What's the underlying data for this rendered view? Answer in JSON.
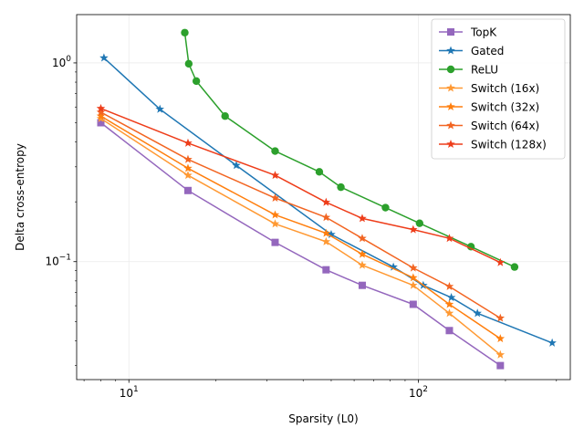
{
  "chart_data": {
    "type": "line",
    "title": "",
    "xlabel": "Sparsity (L0)",
    "ylabel": "Delta cross-entropy",
    "xscale": "log",
    "yscale": "log",
    "xlim": [
      6.6,
      335
    ],
    "ylim": [
      0.0255,
      1.75
    ],
    "x_ticks": [
      {
        "value": 10,
        "base": "10",
        "exp": "1"
      },
      {
        "value": 100,
        "base": "10",
        "exp": "2"
      }
    ],
    "y_ticks": [
      {
        "value": 0.1,
        "base": "10",
        "exp": "−1"
      },
      {
        "value": 1,
        "base": "10",
        "exp": "0"
      }
    ],
    "grid": true,
    "legend_position": "upper-right",
    "series": [
      {
        "name": "TopK",
        "color": "#9467bd",
        "marker": "square",
        "x": [
          8,
          16,
          32,
          48,
          64,
          96,
          128,
          192
        ],
        "y": [
          0.5,
          0.228,
          0.125,
          0.091,
          0.076,
          0.061,
          0.045,
          0.03
        ]
      },
      {
        "name": "Gated",
        "color": "#1f77b4",
        "marker": "star",
        "x": [
          8.2,
          12.8,
          23.5,
          50,
          82,
          104,
          130,
          160,
          290
        ],
        "y": [
          1.06,
          0.585,
          0.305,
          0.137,
          0.094,
          0.076,
          0.066,
          0.055,
          0.039
        ]
      },
      {
        "name": "ReLU",
        "color": "#2ca02c",
        "marker": "circle",
        "x": [
          15.6,
          16.1,
          17.1,
          21.5,
          32,
          45.5,
          54,
          77,
          101,
          152,
          215
        ],
        "y": [
          1.42,
          0.99,
          0.81,
          0.54,
          0.36,
          0.283,
          0.237,
          0.187,
          0.156,
          0.119,
          0.094
        ]
      },
      {
        "name": "Switch (16x)",
        "color": "#ff9933",
        "marker": "star",
        "x": [
          8,
          16,
          32,
          48,
          64,
          96,
          128,
          192
        ],
        "y": [
          0.525,
          0.272,
          0.155,
          0.126,
          0.096,
          0.076,
          0.055,
          0.034
        ]
      },
      {
        "name": "Switch (32x)",
        "color": "#ff7f0e",
        "marker": "star",
        "x": [
          8,
          16,
          32,
          48,
          64,
          96,
          128,
          192
        ],
        "y": [
          0.54,
          0.295,
          0.172,
          0.139,
          0.109,
          0.083,
          0.061,
          0.041
        ]
      },
      {
        "name": "Switch (64x)",
        "color": "#f26522",
        "marker": "star",
        "x": [
          8,
          16,
          32,
          48,
          64,
          96,
          128,
          192
        ],
        "y": [
          0.565,
          0.327,
          0.209,
          0.167,
          0.131,
          0.093,
          0.075,
          0.052
        ]
      },
      {
        "name": "Switch (128x)",
        "color": "#ee3d1a",
        "marker": "star",
        "x": [
          8,
          16,
          32,
          48,
          64,
          96,
          128,
          192
        ],
        "y": [
          0.59,
          0.395,
          0.272,
          0.199,
          0.165,
          0.145,
          0.131,
          0.099
        ]
      }
    ]
  }
}
